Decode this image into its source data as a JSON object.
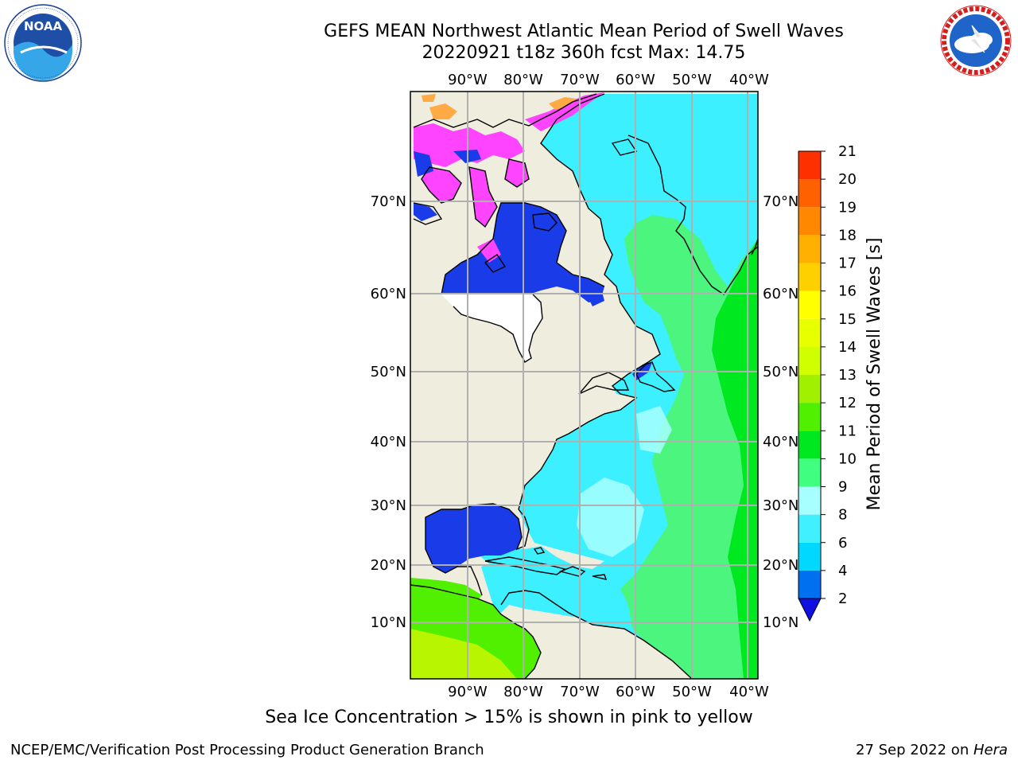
{
  "title": {
    "line1": "GEFS MEAN Northwest Atlantic Mean Period of Swell Waves",
    "line2": "20220921 t18z 360h fcst   Max: 14.75"
  },
  "logos": {
    "left": {
      "icon": "noaa-logo",
      "text": "NOAA",
      "ring_text": "NATIONAL OCEANIC AND ATMOSPHERIC ADMINISTRATION · U.S. DEPARTMENT OF COMMERCE"
    },
    "right": {
      "icon": "nws-logo",
      "ring_text": "NATIONAL WEATHER SERVICE"
    }
  },
  "map": {
    "lon_labels": [
      "90°W",
      "80°W",
      "70°W",
      "60°W",
      "50°W",
      "40°W"
    ],
    "lat_labels": [
      "70°N",
      "60°N",
      "50°N",
      "40°N",
      "30°N",
      "20°N",
      "10°N"
    ],
    "colors": {
      "land": "#efeddd",
      "gridline": "#b0b0b0",
      "coast": "#000000"
    }
  },
  "colorbar": {
    "label": "Mean Period of Swell Waves [s]",
    "ticks": [
      "2",
      "4",
      "6",
      "8",
      "9",
      "10",
      "11",
      "12",
      "13",
      "14",
      "15",
      "16",
      "17",
      "18",
      "19",
      "20",
      "21"
    ],
    "colors": [
      "#0070f0",
      "#00d8ff",
      "#40f0ff",
      "#a8ffff",
      "#40ff80",
      "#00e820",
      "#50f000",
      "#a0f000",
      "#d0ff00",
      "#e8ff00",
      "#ffff00",
      "#ffd000",
      "#ffb000",
      "#ff8800",
      "#ff6000",
      "#ff3000",
      "#ff0000"
    ],
    "under_color": "#1010e0"
  },
  "caption": "Sea Ice Concentration > 15% is shown in pink to yellow",
  "footer": {
    "left": "NCEP/EMC/Verification Post Processing Product Generation Branch",
    "right_prefix": "27 Sep 2022 on ",
    "right_host": "Hera"
  }
}
